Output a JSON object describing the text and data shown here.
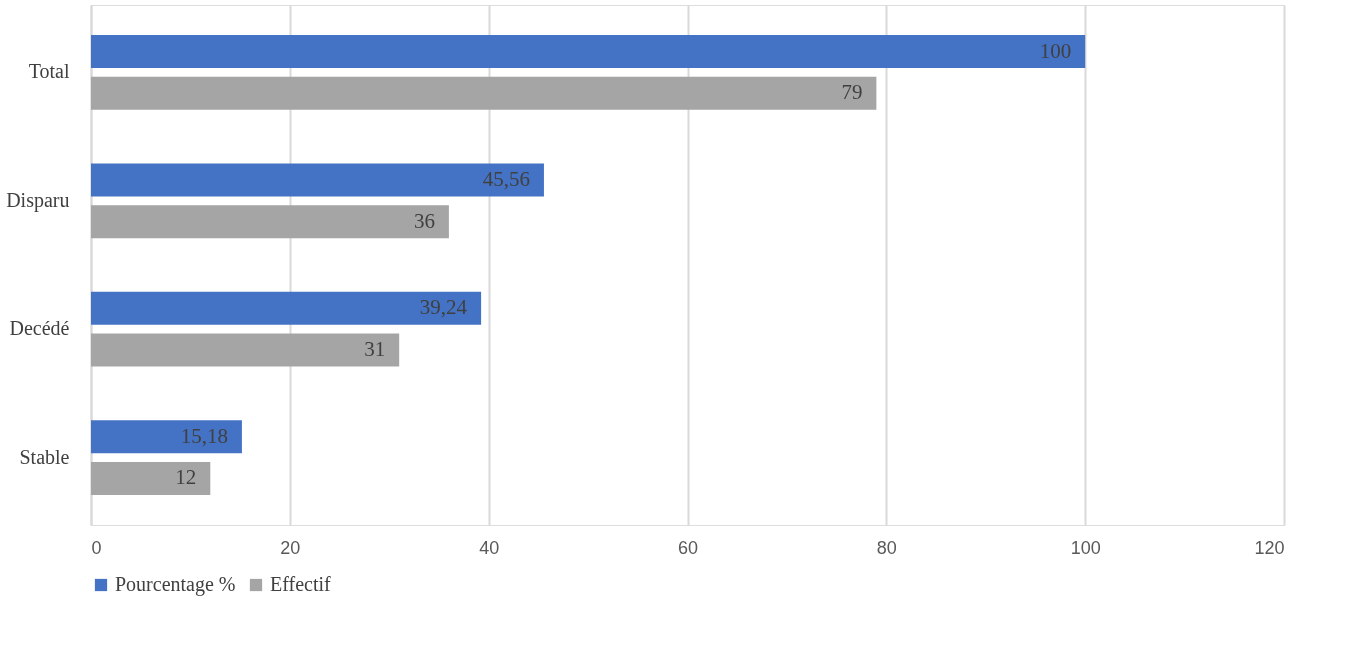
{
  "chart_data": {
    "type": "bar",
    "orientation": "horizontal",
    "categories": [
      "Total",
      "Disparu",
      "Decédé",
      "Stable"
    ],
    "series": [
      {
        "name": "Pourcentage %",
        "color": "#4472c4",
        "values": [
          100,
          45.56,
          39.24,
          15.18
        ],
        "value_labels": [
          "100",
          "45,56",
          "39,24",
          "15,18"
        ]
      },
      {
        "name": "Effectif",
        "color": "#a5a5a5",
        "values": [
          79,
          36,
          31,
          12
        ],
        "value_labels": [
          "79",
          "36",
          "31",
          "12"
        ]
      }
    ],
    "xlim": [
      0,
      120
    ],
    "xticks": [
      0,
      20,
      40,
      60,
      80,
      100,
      120
    ],
    "grid": "x",
    "legend": "bottom"
  }
}
